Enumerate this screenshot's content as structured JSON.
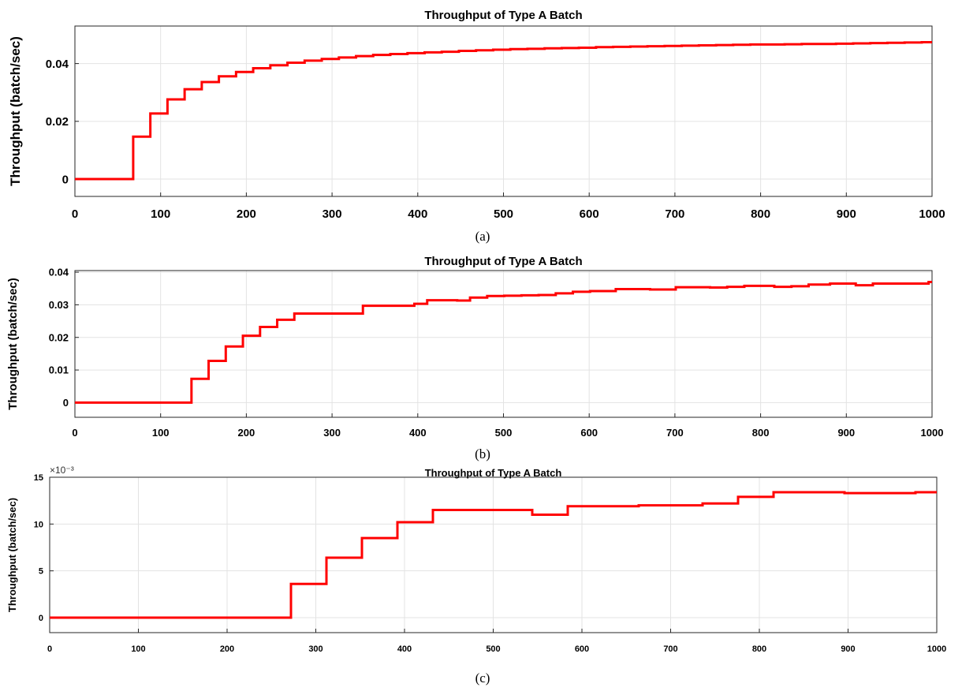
{
  "chart_data": [
    {
      "panel": "a",
      "type": "line",
      "step": true,
      "title": "Throughput of Type A Batch",
      "ylabel": "Throughput (batch/sec)",
      "xlabel": "",
      "caption": "(a)",
      "xlim": [
        0,
        1000
      ],
      "ylim": [
        -0.006,
        0.053
      ],
      "xticks": [
        0,
        100,
        200,
        300,
        400,
        500,
        600,
        700,
        800,
        900,
        1000
      ],
      "yticks": [
        0,
        0.02,
        0.04
      ],
      "ytick_labels": [
        "0",
        "0.02",
        "0.04"
      ],
      "exponent": "",
      "grid": true,
      "series": [
        {
          "color": "#ff0000",
          "x": [
            0,
            68,
            88,
            108,
            128,
            148,
            168,
            188,
            208,
            228,
            248,
            268,
            288,
            308,
            328,
            348,
            368,
            388,
            408,
            428,
            448,
            468,
            488,
            508,
            528,
            548,
            568,
            588,
            608,
            628,
            648,
            668,
            688,
            708,
            728,
            748,
            768,
            788,
            808,
            828,
            848,
            868,
            888,
            908,
            928,
            948,
            968,
            988,
            1000
          ],
          "y": [
            0,
            0.0147,
            0.0227,
            0.0276,
            0.0311,
            0.0336,
            0.0356,
            0.0371,
            0.0384,
            0.0394,
            0.0403,
            0.041,
            0.0416,
            0.0421,
            0.0426,
            0.043,
            0.0433,
            0.0436,
            0.0439,
            0.0441,
            0.0444,
            0.0446,
            0.0448,
            0.045,
            0.0451,
            0.0453,
            0.0454,
            0.0455,
            0.0457,
            0.0458,
            0.0459,
            0.046,
            0.0461,
            0.0462,
            0.0463,
            0.0464,
            0.0465,
            0.0466,
            0.0466,
            0.0467,
            0.0468,
            0.0468,
            0.0469,
            0.047,
            0.0471,
            0.0472,
            0.0473,
            0.0474,
            0.0474
          ]
        }
      ]
    },
    {
      "panel": "b",
      "type": "line",
      "step": true,
      "title": "Throughput of Type A Batch",
      "ylabel": "Throughput (batch/sec)",
      "xlabel": "",
      "caption": "(b)",
      "xlim": [
        0,
        1000
      ],
      "ylim": [
        -0.0045,
        0.0405
      ],
      "xticks": [
        0,
        100,
        200,
        300,
        400,
        500,
        600,
        700,
        800,
        900,
        1000
      ],
      "yticks": [
        0,
        0.01,
        0.02,
        0.03,
        0.04
      ],
      "ytick_labels": [
        "0",
        "0.01",
        "0.02",
        "0.03",
        "0.04"
      ],
      "exponent": "",
      "grid": true,
      "series": [
        {
          "color": "#ff0000",
          "x": [
            0,
            136,
            156,
            176,
            196,
            216,
            236,
            256,
            276,
            296,
            316,
            336,
            356,
            376,
            396,
            411,
            431,
            446,
            461,
            481,
            501,
            521,
            541,
            561,
            581,
            601,
            631,
            651,
            671,
            701,
            741,
            761,
            781,
            816,
            836,
            856,
            881,
            911,
            931,
            951,
            971,
            996,
            1000
          ],
          "y": [
            0,
            0.0073,
            0.0128,
            0.0172,
            0.0205,
            0.0232,
            0.0254,
            0.0273,
            0.0273,
            0.0273,
            0.0273,
            0.0297,
            0.0297,
            0.0297,
            0.0303,
            0.0314,
            0.0314,
            0.0313,
            0.0322,
            0.0327,
            0.0328,
            0.0329,
            0.033,
            0.0335,
            0.034,
            0.0342,
            0.0348,
            0.0348,
            0.0347,
            0.0354,
            0.0353,
            0.0355,
            0.0358,
            0.0355,
            0.0357,
            0.0362,
            0.0365,
            0.036,
            0.0365,
            0.0365,
            0.0365,
            0.037,
            0.037
          ]
        }
      ]
    },
    {
      "panel": "c",
      "type": "line",
      "step": true,
      "title": "Throughput of Type A Batch",
      "ylabel": "Throughput (batch/sec)",
      "xlabel": "",
      "caption": "(c)",
      "xlim": [
        0,
        1000
      ],
      "ylim": [
        -1.6,
        15
      ],
      "xticks": [
        0,
        100,
        200,
        300,
        400,
        500,
        600,
        700,
        800,
        900,
        1000
      ],
      "yticks": [
        0,
        5,
        10,
        15
      ],
      "ytick_labels": [
        "0",
        "5",
        "10",
        "15"
      ],
      "exponent": "×10⁻³",
      "grid": true,
      "series": [
        {
          "color": "#ff0000",
          "x": [
            0,
            272,
            312,
            352,
            392,
            432,
            472,
            512,
            544,
            584,
            624,
            664,
            704,
            736,
            776,
            816,
            856,
            896,
            936,
            976,
            1000
          ],
          "y": [
            0,
            3.6,
            6.4,
            8.5,
            10.2,
            11.5,
            11.5,
            11.5,
            11.0,
            11.9,
            11.9,
            12.0,
            12.0,
            12.2,
            12.9,
            13.4,
            13.4,
            13.3,
            13.3,
            13.4,
            13.4
          ]
        }
      ]
    }
  ]
}
